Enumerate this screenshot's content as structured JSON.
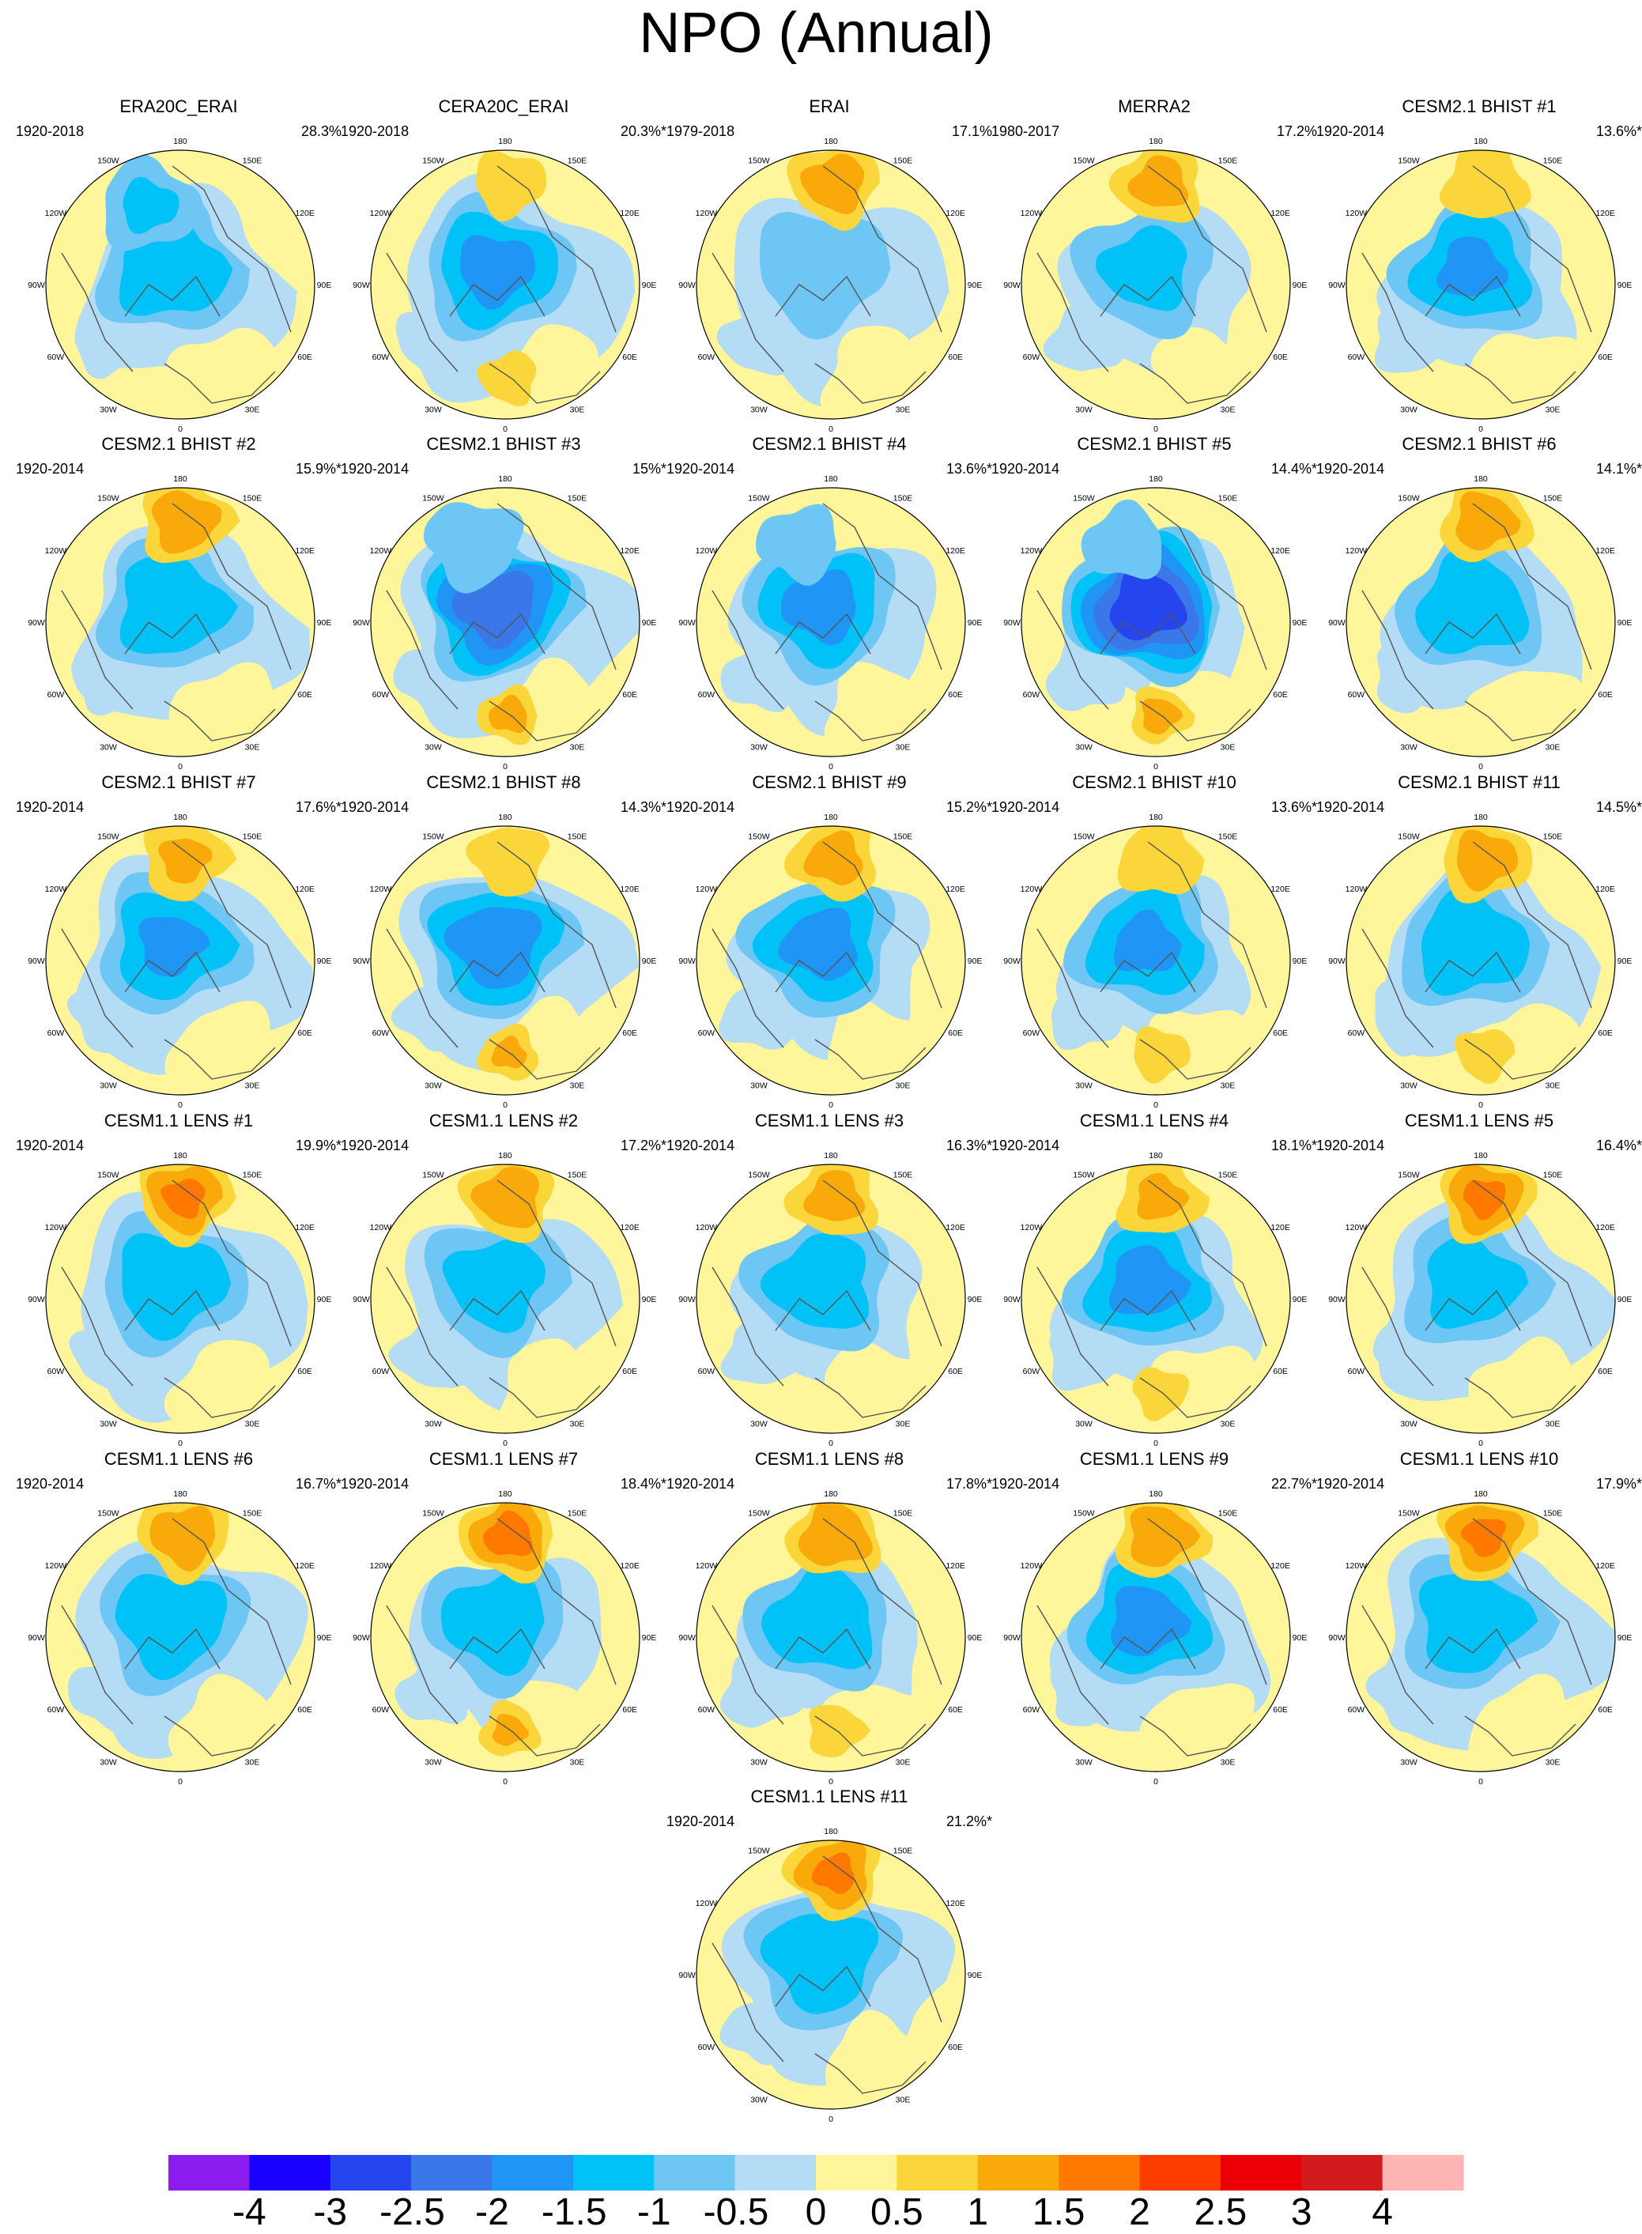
{
  "title": "NPO (Annual)",
  "chart_data": {
    "type": "polar-stereographic contour maps",
    "title": "NPO (Annual)",
    "lon_labels": [
      "180",
      "150E",
      "120E",
      "90E",
      "60E",
      "30E",
      "0",
      "30W",
      "60W",
      "90W",
      "120W",
      "150W"
    ],
    "colorbar": {
      "ticks": [
        "-4",
        "-3",
        "-2.5",
        "-2",
        "-1.5",
        "-1",
        "-0.5",
        "0",
        "0.5",
        "1",
        "1.5",
        "2",
        "2.5",
        "3",
        "4"
      ],
      "colors": [
        "#8b1ced",
        "#1a00ff",
        "#2546ee",
        "#3a78ea",
        "#1f96f5",
        "#00c2f6",
        "#6ec6f5",
        "#b4dcf4",
        "#fff59a",
        "#fbd63a",
        "#f9aa0a",
        "#ff7800",
        "#ff3c00",
        "#ec0006",
        "#d21b1e",
        "#ffb5b4"
      ]
    },
    "panels": [
      {
        "name": "ERA20C_ERAI",
        "period": "1920-2018",
        "pct": "28.3%",
        "pole": -1.4,
        "pacific": -1.0,
        "atlantic": -0.7
      },
      {
        "name": "CERA20C_ERAI",
        "period": "1920-2018",
        "pct": "20.3%*",
        "pole": -1.6,
        "pacific": 0.3,
        "atlantic": 0.7
      },
      {
        "name": "ERAI",
        "period": "1979-2018",
        "pct": "17.1%",
        "pole": -0.9,
        "pacific": 0.9,
        "atlantic": 0.2
      },
      {
        "name": "MERRA2",
        "period": "1980-2017",
        "pct": "17.2%",
        "pole": -1.1,
        "pacific": 0.8,
        "atlantic": 0.3
      },
      {
        "name": "CESM2.1 BHIST #1",
        "period": "1920-2014",
        "pct": "13.6%*",
        "pole": -1.5,
        "pacific": 0.6,
        "atlantic": 0.3
      },
      {
        "name": "CESM2.1 BHIST #2",
        "period": "1920-2014",
        "pct": "15.9%*",
        "pole": -1.4,
        "pacific": 1.0,
        "atlantic": 0.3
      },
      {
        "name": "CESM2.1 BHIST #3",
        "period": "1920-2014",
        "pct": "15%*",
        "pole": -2.3,
        "pacific": -0.9,
        "atlantic": 0.9
      },
      {
        "name": "CESM2.1 BHIST #4",
        "period": "1920-2014",
        "pct": "13.6%*",
        "pole": -1.6,
        "pacific": -0.6,
        "atlantic": 0.2
      },
      {
        "name": "CESM2.1 BHIST #5",
        "period": "1920-2014",
        "pct": "14.4%*",
        "pole": -2.8,
        "pacific": -0.6,
        "atlantic": 0.9
      },
      {
        "name": "CESM2.1 BHIST #6",
        "period": "1920-2014",
        "pct": "14.1%*",
        "pole": -1.4,
        "pacific": 0.9,
        "atlantic": 0.3
      },
      {
        "name": "CESM2.1 BHIST #7",
        "period": "1920-2014",
        "pct": "17.6%*",
        "pole": -1.5,
        "pacific": 0.7,
        "atlantic": 0.3
      },
      {
        "name": "CESM2.1 BHIST #8",
        "period": "1920-2014",
        "pct": "14.3%*",
        "pole": -1.8,
        "pacific": 0.4,
        "atlantic": 0.8
      },
      {
        "name": "CESM2.1 BHIST #9",
        "period": "1920-2014",
        "pct": "15.2%*",
        "pole": -1.6,
        "pacific": 0.8,
        "atlantic": 0.2
      },
      {
        "name": "CESM2.1 BHIST #10",
        "period": "1920-2014",
        "pct": "13.6%*",
        "pole": -1.5,
        "pacific": 0.6,
        "atlantic": 0.7
      },
      {
        "name": "CESM2.1 BHIST #11",
        "period": "1920-2014",
        "pct": "14.5%*",
        "pole": -1.4,
        "pacific": 0.9,
        "atlantic": 0.7
      },
      {
        "name": "CESM1.1 LENS #1",
        "period": "1920-2014",
        "pct": "19.9%*",
        "pole": -1.4,
        "pacific": 1.2,
        "atlantic": 0.2
      },
      {
        "name": "CESM1.1 LENS #2",
        "period": "1920-2014",
        "pct": "17.2%*",
        "pole": -1.2,
        "pacific": 1.0,
        "atlantic": 0.2
      },
      {
        "name": "CESM1.1 LENS #3",
        "period": "1920-2014",
        "pct": "16.3%*",
        "pole": -1.3,
        "pacific": 0.8,
        "atlantic": 0.2
      },
      {
        "name": "CESM1.1 LENS #4",
        "period": "1920-2014",
        "pct": "18.1%*",
        "pole": -1.6,
        "pacific": 0.7,
        "atlantic": 0.6
      },
      {
        "name": "CESM1.1 LENS #5",
        "period": "1920-2014",
        "pct": "16.4%*",
        "pole": -1.2,
        "pacific": 1.2,
        "atlantic": 0.2
      },
      {
        "name": "CESM1.1 LENS #6",
        "period": "1920-2014",
        "pct": "16.7%*",
        "pole": -1.4,
        "pacific": 1.0,
        "atlantic": 0.2
      },
      {
        "name": "CESM1.1 LENS #7",
        "period": "1920-2014",
        "pct": "18.4%*",
        "pole": -1.3,
        "pacific": 1.3,
        "atlantic": 0.8
      },
      {
        "name": "CESM1.1 LENS #8",
        "period": "1920-2014",
        "pct": "17.8%*",
        "pole": -1.4,
        "pacific": 1.1,
        "atlantic": 0.7
      },
      {
        "name": "CESM1.1 LENS #9",
        "period": "1920-2014",
        "pct": "22.7%*",
        "pole": -1.6,
        "pacific": 1.0,
        "atlantic": 0.2
      },
      {
        "name": "CESM1.1 LENS #10",
        "period": "1920-2014",
        "pct": "17.9%*",
        "pole": -1.4,
        "pacific": 1.2,
        "atlantic": 0.2
      },
      {
        "name": "CESM1.1 LENS #11",
        "period": "1920-2014",
        "pct": "21.2%*",
        "pole": -1.4,
        "pacific": 1.2,
        "atlantic": 0.2
      }
    ]
  }
}
